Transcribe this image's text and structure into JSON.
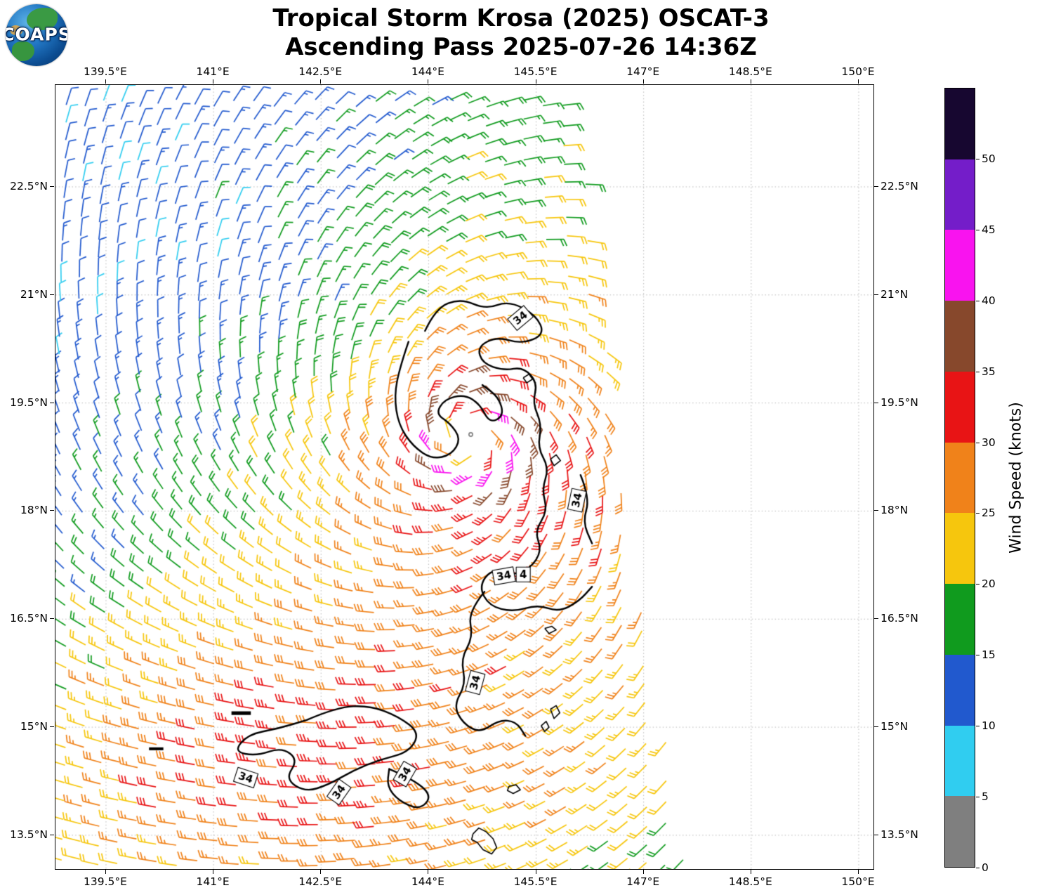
{
  "logo": {
    "text": "COAPS"
  },
  "title": {
    "line1": "Tropical Storm Krosa (2025) OSCAT-3",
    "line2": "Ascending Pass 2025-07-26 14:36Z"
  },
  "axes": {
    "lon_range": [
      138.795,
      150.206
    ],
    "lat_range": [
      13.031,
      23.914
    ],
    "x_ticks": [
      {
        "lon": 139.5,
        "label": "139.5°E"
      },
      {
        "lon": 141.0,
        "label": "141°E"
      },
      {
        "lon": 142.5,
        "label": "142.5°E"
      },
      {
        "lon": 144.0,
        "label": "144°E"
      },
      {
        "lon": 145.5,
        "label": "145.5°E"
      },
      {
        "lon": 147.0,
        "label": "147°E"
      },
      {
        "lon": 148.5,
        "label": "148.5°E"
      },
      {
        "lon": 150.0,
        "label": "150°E"
      }
    ],
    "y_ticks": [
      {
        "lat": 22.5,
        "label": "22.5°N"
      },
      {
        "lat": 21.0,
        "label": "21°N"
      },
      {
        "lat": 19.5,
        "label": "19.5°N"
      },
      {
        "lat": 18.0,
        "label": "18°N"
      },
      {
        "lat": 16.5,
        "label": "16.5°N"
      },
      {
        "lat": 15.0,
        "label": "15°N"
      },
      {
        "lat": 13.5,
        "label": "13.5°N"
      }
    ]
  },
  "colorbar": {
    "label": "Wind Speed (knots)",
    "ticks": [
      0,
      5,
      10,
      15,
      20,
      25,
      30,
      35,
      40,
      45,
      50
    ],
    "max_value": 55,
    "segments": [
      {
        "from": 0,
        "to": 5,
        "color": "#7f7f7f"
      },
      {
        "from": 5,
        "to": 10,
        "color": "#30cdf0"
      },
      {
        "from": 10,
        "to": 15,
        "color": "#2159ce"
      },
      {
        "from": 15,
        "to": 20,
        "color": "#109b1e"
      },
      {
        "from": 20,
        "to": 25,
        "color": "#f6c60d"
      },
      {
        "from": 25,
        "to": 30,
        "color": "#f0821a"
      },
      {
        "from": 30,
        "to": 35,
        "color": "#e81415"
      },
      {
        "from": 35,
        "to": 40,
        "color": "#87482c"
      },
      {
        "from": 40,
        "to": 45,
        "color": "#f913ef"
      },
      {
        "from": 45,
        "to": 50,
        "color": "#741dc9"
      },
      {
        "from": 50,
        "to": 55,
        "color": "#170730"
      }
    ]
  },
  "chart_data": {
    "type": "wind_barb_map",
    "title": "Tropical Storm Krosa (2025) OSCAT-3 — Ascending Pass 2025-07-26 14:36Z",
    "instrument": "OSCAT-3",
    "units": "knots",
    "lon_range": [
      138.795,
      150.206
    ],
    "lat_range": [
      13.031,
      23.914
    ],
    "storm_center": {
      "lon": 144.55,
      "lat": 19.0
    },
    "barb_grid_deg": 0.27,
    "wind_field_model": {
      "center_lon": 144.55,
      "center_lat": 19.0,
      "vmax_kt": 42,
      "rmax_deg": 0.5,
      "decay_exp": 0.4,
      "inflow_deg": 22,
      "eye_radius_deg": 0.22,
      "weak_sector": {
        "center_az_deg": 150,
        "width_deg": 45,
        "amount": 0.3,
        "full_radius_deg": 3.5
      },
      "strong_sector": {
        "center_az_deg": -45,
        "width_deg": 70,
        "amount": 0.25,
        "full_radius_deg": 2.5
      },
      "monsoon_jet": {
        "max_kt": 30,
        "center_lat": 14.6,
        "lat_width_deg": 2.2,
        "lon_center": 142.0,
        "lon_width_deg": 4.0
      }
    },
    "swath_east_edge": {
      "lon_at_lat_23_5": 146.0,
      "lon_slope_per_deg_south": 0.14
    },
    "contours": {
      "level_kt": 34,
      "paths": [
        [
          [
            143.95,
            20.5
          ],
          [
            144.1,
            20.82
          ],
          [
            144.45,
            20.95
          ],
          [
            144.8,
            20.8
          ],
          [
            145.12,
            20.92
          ],
          [
            145.5,
            20.72
          ],
          [
            145.62,
            20.45
          ],
          [
            145.3,
            20.32
          ],
          [
            144.95,
            20.42
          ],
          [
            144.68,
            20.28
          ],
          [
            144.75,
            20.05
          ],
          [
            145.05,
            19.95
          ],
          [
            145.32,
            20.0
          ],
          [
            145.52,
            19.78
          ],
          [
            145.45,
            19.5
          ],
          [
            145.58,
            19.2
          ],
          [
            145.52,
            18.88
          ],
          [
            145.68,
            18.6
          ],
          [
            145.58,
            18.3
          ],
          [
            145.66,
            18.0
          ],
          [
            145.48,
            17.72
          ],
          [
            145.58,
            17.45
          ],
          [
            145.42,
            17.2
          ],
          [
            145.12,
            17.1
          ],
          [
            144.88,
            17.2
          ],
          [
            144.7,
            16.95
          ],
          [
            144.85,
            16.68
          ],
          [
            145.18,
            16.6
          ],
          [
            145.52,
            16.7
          ],
          [
            145.82,
            16.6
          ],
          [
            146.1,
            16.75
          ],
          [
            146.28,
            16.95
          ]
        ],
        [
          [
            143.72,
            20.35
          ],
          [
            143.6,
            20.0
          ],
          [
            143.52,
            19.6
          ],
          [
            143.58,
            19.2
          ],
          [
            143.78,
            18.9
          ],
          [
            144.05,
            18.72
          ],
          [
            144.32,
            18.78
          ],
          [
            144.45,
            19.0
          ],
          [
            144.3,
            19.22
          ],
          [
            144.1,
            19.35
          ],
          [
            144.22,
            19.55
          ],
          [
            144.5,
            19.62
          ],
          [
            144.72,
            19.48
          ],
          [
            144.85,
            19.22
          ],
          [
            145.05,
            19.32
          ],
          [
            144.98,
            19.58
          ],
          [
            144.75,
            19.75
          ]
        ],
        [
          [
            144.78,
            16.88
          ],
          [
            144.55,
            16.6
          ],
          [
            144.62,
            16.25
          ],
          [
            144.45,
            15.95
          ],
          [
            144.52,
            15.6
          ],
          [
            144.35,
            15.3
          ],
          [
            144.48,
            15.05
          ],
          [
            144.72,
            14.92
          ],
          [
            144.98,
            15.1
          ],
          [
            145.22,
            15.08
          ],
          [
            145.35,
            14.88
          ]
        ],
        [
          [
            142.3,
            15.1
          ],
          [
            142.72,
            15.28
          ],
          [
            143.18,
            15.3
          ],
          [
            143.58,
            15.15
          ],
          [
            143.88,
            14.92
          ],
          [
            143.72,
            14.65
          ],
          [
            143.32,
            14.55
          ],
          [
            142.95,
            14.4
          ],
          [
            142.6,
            14.2
          ],
          [
            142.28,
            14.1
          ],
          [
            142.0,
            14.28
          ],
          [
            142.18,
            14.55
          ],
          [
            141.95,
            14.72
          ],
          [
            141.6,
            14.6
          ],
          [
            141.28,
            14.66
          ],
          [
            141.48,
            14.9
          ],
          [
            141.9,
            14.98
          ],
          [
            142.3,
            15.1
          ]
        ],
        [
          [
            143.45,
            14.42
          ],
          [
            143.78,
            14.28
          ],
          [
            144.05,
            14.05
          ],
          [
            143.88,
            13.85
          ],
          [
            143.58,
            13.98
          ],
          [
            143.42,
            14.18
          ],
          [
            143.45,
            14.42
          ]
        ],
        [
          [
            146.12,
            18.5
          ],
          [
            146.25,
            18.18
          ],
          [
            146.15,
            17.85
          ],
          [
            146.28,
            17.55
          ]
        ]
      ],
      "labels": [
        {
          "text": "34",
          "lon": 145.28,
          "lat": 20.68,
          "angle": -40
        },
        {
          "text": "34",
          "lon": 146.07,
          "lat": 18.15,
          "angle": -78
        },
        {
          "text": "34",
          "lon": 145.05,
          "lat": 17.1,
          "angle": -10
        },
        {
          "text": "4",
          "lon": 145.32,
          "lat": 17.12,
          "angle": 0
        },
        {
          "text": "34",
          "lon": 144.65,
          "lat": 15.62,
          "angle": -75
        },
        {
          "text": "34",
          "lon": 141.45,
          "lat": 14.3,
          "angle": 18
        },
        {
          "text": "34",
          "lon": 142.75,
          "lat": 14.1,
          "angle": -55
        },
        {
          "text": "34",
          "lon": 143.67,
          "lat": 14.35,
          "angle": -60
        }
      ]
    },
    "islands": [
      {
        "pts": [
          [
            144.62,
            13.52
          ],
          [
            144.7,
            13.6
          ],
          [
            144.8,
            13.55
          ],
          [
            144.9,
            13.45
          ],
          [
            144.95,
            13.33
          ],
          [
            144.88,
            13.24
          ],
          [
            144.76,
            13.3
          ],
          [
            144.68,
            13.4
          ],
          [
            144.6,
            13.44
          ],
          [
            144.62,
            13.52
          ]
        ],
        "fill": false
      },
      {
        "pts": [
          [
            145.12,
            14.18
          ],
          [
            145.22,
            14.2
          ],
          [
            145.28,
            14.13
          ],
          [
            145.18,
            14.08
          ],
          [
            145.1,
            14.12
          ],
          [
            145.12,
            14.18
          ]
        ],
        "fill": false
      },
      {
        "pts": [
          [
            145.57,
            15.02
          ],
          [
            145.64,
            15.08
          ],
          [
            145.68,
            15.0
          ],
          [
            145.62,
            14.94
          ],
          [
            145.57,
            15.02
          ]
        ],
        "fill": false
      },
      {
        "pts": [
          [
            145.7,
            15.25
          ],
          [
            145.78,
            15.3
          ],
          [
            145.83,
            15.2
          ],
          [
            145.75,
            15.12
          ],
          [
            145.7,
            15.25
          ]
        ],
        "fill": false
      },
      {
        "pts": [
          [
            145.62,
            16.37
          ],
          [
            145.72,
            16.4
          ],
          [
            145.78,
            16.35
          ],
          [
            145.68,
            16.3
          ],
          [
            145.62,
            16.37
          ]
        ],
        "fill": false
      },
      {
        "pts": [
          [
            145.7,
            18.72
          ],
          [
            145.78,
            18.78
          ],
          [
            145.84,
            18.7
          ],
          [
            145.75,
            18.63
          ],
          [
            145.7,
            18.72
          ]
        ],
        "fill": false
      },
      {
        "pts": [
          [
            145.32,
            19.85
          ],
          [
            145.4,
            19.9
          ],
          [
            145.45,
            19.83
          ],
          [
            145.37,
            19.78
          ],
          [
            145.32,
            19.85
          ]
        ],
        "fill": false
      },
      {
        "pts": [
          [
            141.25,
            15.22
          ],
          [
            141.52,
            15.22
          ],
          [
            141.52,
            15.17
          ],
          [
            141.25,
            15.17
          ]
        ],
        "fill": true
      },
      {
        "pts": [
          [
            140.1,
            14.72
          ],
          [
            140.3,
            14.72
          ],
          [
            140.3,
            14.68
          ],
          [
            140.1,
            14.68
          ]
        ],
        "fill": true
      }
    ]
  }
}
